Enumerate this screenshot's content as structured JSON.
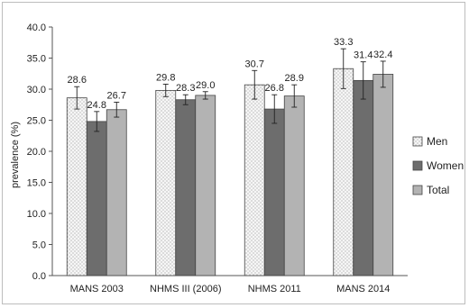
{
  "chart_data": {
    "type": "bar",
    "ylabel": "prevalence (%)",
    "ylim": [
      0,
      40
    ],
    "yticks": [
      "0.0",
      "5.0",
      "10.0",
      "15.0",
      "20.0",
      "25.0",
      "30.0",
      "35.0",
      "40.0"
    ],
    "categories": [
      "MANS 2003",
      "NHMS III (2006)",
      "NHMS 2011",
      "MANS 2014"
    ],
    "series": [
      {
        "name": "Men",
        "values": [
          28.6,
          29.8,
          30.7,
          33.3
        ],
        "labels": [
          "28.6",
          "29.8",
          "30.7",
          "33.3"
        ],
        "err": [
          1.8,
          1.0,
          2.3,
          3.2
        ],
        "color": "#f4f4f4",
        "pattern": "dots"
      },
      {
        "name": "Women",
        "values": [
          24.8,
          28.3,
          26.8,
          31.4
        ],
        "labels": [
          "24.8",
          "28.3",
          "26.8",
          "31.4"
        ],
        "err": [
          1.6,
          0.8,
          2.3,
          3.0
        ],
        "color": "#6d6d6d"
      },
      {
        "name": "Total",
        "values": [
          26.7,
          29.0,
          28.9,
          32.4
        ],
        "labels": [
          "26.7",
          "29.0",
          "28.9",
          "32.4"
        ],
        "err": [
          1.2,
          0.6,
          1.8,
          2.1
        ],
        "color": "#b3b3b3"
      }
    ],
    "error_bars": true,
    "grid": false,
    "legend": "right"
  }
}
